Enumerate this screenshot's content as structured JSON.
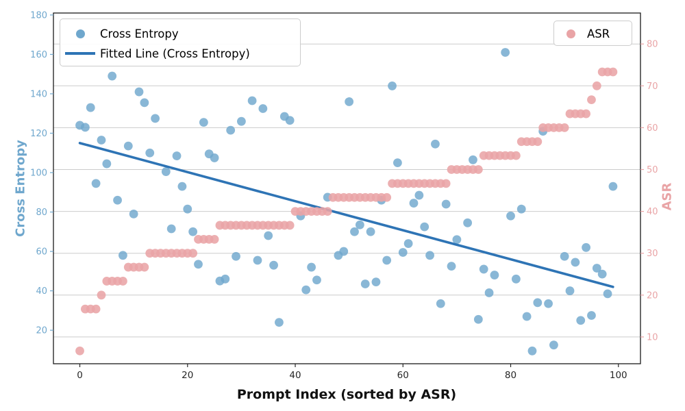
{
  "figure": {
    "xlabel": "Prompt Index (sorted by ASR)",
    "ylabel_left": "Cross Entropy",
    "ylabel_right": "ASR",
    "legend_main": {
      "cross_entropy": "Cross Entropy",
      "fitted_line": "Fitted Line (Cross Entropy)"
    },
    "legend_asr": {
      "asr": "ASR"
    }
  },
  "chart_data": {
    "type": "scatter",
    "title": "",
    "xlabel": "Prompt Index (sorted by ASR)",
    "ylabel_left": "Cross Entropy",
    "ylabel_right": "ASR",
    "xlim": [
      -4.9,
      104.1
    ],
    "ylim_left": [
      3,
      181
    ],
    "ylim_right": [
      3.6,
      87.4
    ],
    "x_ticks": [
      0,
      20,
      40,
      60,
      80,
      100
    ],
    "y_ticks_left": [
      20,
      40,
      60,
      80,
      100,
      120,
      140,
      160,
      180
    ],
    "y_ticks_right": [
      10,
      20,
      30,
      40,
      50,
      60,
      70,
      80
    ],
    "grid": "horizontal lines at right-axis (ASR) ticks",
    "legend_position": [
      "upper left",
      "upper right"
    ],
    "palette": {
      "cross_entropy": "#6fa7cd",
      "asr": "#e9a4a6",
      "fitted_line": "#2e74b5",
      "grid": "#cccccc",
      "spine": "#1a1a1a",
      "x_text": "#262626"
    },
    "series": [
      {
        "name": "Cross Entropy",
        "type": "scatter",
        "axis": "left",
        "color": "#6fa7cd",
        "points": [
          [
            0,
            124
          ],
          [
            1,
            123
          ],
          [
            2,
            133
          ],
          [
            3,
            94.5
          ],
          [
            4,
            116.5
          ],
          [
            5,
            104.5
          ],
          [
            6,
            149
          ],
          [
            7,
            86
          ],
          [
            8,
            58
          ],
          [
            9,
            113.5
          ],
          [
            10,
            79
          ],
          [
            11,
            141
          ],
          [
            12,
            135.5
          ],
          [
            13,
            110
          ],
          [
            14,
            127.5
          ],
          [
            16,
            100.5
          ],
          [
            17,
            71.5
          ],
          [
            18,
            108.5
          ],
          [
            19,
            93
          ],
          [
            20,
            81.5
          ],
          [
            21,
            70
          ],
          [
            22,
            53.5
          ],
          [
            23,
            125.5
          ],
          [
            24,
            109.5
          ],
          [
            25,
            107.5
          ],
          [
            26,
            45
          ],
          [
            27,
            46
          ],
          [
            28,
            121.5
          ],
          [
            29,
            57.5
          ],
          [
            30,
            126
          ],
          [
            32,
            136.5
          ],
          [
            33,
            55.5
          ],
          [
            34,
            132.5
          ],
          [
            35,
            68
          ],
          [
            36,
            53
          ],
          [
            37,
            24
          ],
          [
            38,
            128.5
          ],
          [
            39,
            126.5
          ],
          [
            41,
            78
          ],
          [
            42,
            40.5
          ],
          [
            43,
            52
          ],
          [
            44,
            45.5
          ],
          [
            46,
            87.5
          ],
          [
            48,
            58
          ],
          [
            49,
            60
          ],
          [
            50,
            136
          ],
          [
            51,
            70
          ],
          [
            52,
            73.5
          ],
          [
            53,
            43.5
          ],
          [
            54,
            70
          ],
          [
            55,
            44.5
          ],
          [
            56,
            86
          ],
          [
            57,
            55.5
          ],
          [
            58,
            144
          ],
          [
            59,
            105
          ],
          [
            60,
            59.5
          ],
          [
            61,
            64
          ],
          [
            62,
            84.5
          ],
          [
            63,
            88.5
          ],
          [
            64,
            72.5
          ],
          [
            65,
            58
          ],
          [
            66,
            114.5
          ],
          [
            67,
            33.5
          ],
          [
            68,
            84
          ],
          [
            69,
            52.5
          ],
          [
            70,
            66
          ],
          [
            72,
            74.5
          ],
          [
            73,
            106.5
          ],
          [
            74,
            25.5
          ],
          [
            75,
            51
          ],
          [
            76,
            39
          ],
          [
            77,
            48
          ],
          [
            79,
            161
          ],
          [
            80,
            78
          ],
          [
            81,
            46
          ],
          [
            82,
            81.5
          ],
          [
            83,
            27
          ],
          [
            84,
            9.5
          ],
          [
            85,
            34
          ],
          [
            86,
            121
          ],
          [
            87,
            33.5
          ],
          [
            88,
            12.5
          ],
          [
            90,
            57.5
          ],
          [
            91,
            40
          ],
          [
            92,
            54.5
          ],
          [
            93,
            25
          ],
          [
            94,
            62
          ],
          [
            95,
            27.5
          ],
          [
            96,
            51.5
          ],
          [
            97,
            48.5
          ],
          [
            98,
            38.5
          ],
          [
            99,
            93
          ]
        ]
      },
      {
        "name": "Fitted Line (Cross Entropy)",
        "type": "line",
        "axis": "left",
        "color": "#2e74b5",
        "points": [
          [
            0,
            115
          ],
          [
            99,
            42
          ]
        ]
      },
      {
        "name": "ASR",
        "type": "scatter",
        "axis": "right",
        "color": "#e9a4a6",
        "points": [
          [
            0,
            6.67
          ],
          [
            1,
            16.67
          ],
          [
            2,
            16.67
          ],
          [
            3,
            16.67
          ],
          [
            4,
            20
          ],
          [
            5,
            23.33
          ],
          [
            6,
            23.33
          ],
          [
            7,
            23.33
          ],
          [
            8,
            23.33
          ],
          [
            9,
            26.67
          ],
          [
            10,
            26.67
          ],
          [
            11,
            26.67
          ],
          [
            12,
            26.67
          ],
          [
            13,
            30
          ],
          [
            14,
            30
          ],
          [
            15,
            30
          ],
          [
            16,
            30
          ],
          [
            17,
            30
          ],
          [
            18,
            30
          ],
          [
            19,
            30
          ],
          [
            20,
            30
          ],
          [
            21,
            30
          ],
          [
            22,
            33.33
          ],
          [
            23,
            33.33
          ],
          [
            24,
            33.33
          ],
          [
            25,
            33.33
          ],
          [
            26,
            36.67
          ],
          [
            27,
            36.67
          ],
          [
            28,
            36.67
          ],
          [
            29,
            36.67
          ],
          [
            30,
            36.67
          ],
          [
            31,
            36.67
          ],
          [
            32,
            36.67
          ],
          [
            33,
            36.67
          ],
          [
            34,
            36.67
          ],
          [
            35,
            36.67
          ],
          [
            36,
            36.67
          ],
          [
            37,
            36.67
          ],
          [
            38,
            36.67
          ],
          [
            39,
            36.67
          ],
          [
            40,
            40
          ],
          [
            41,
            40
          ],
          [
            42,
            40
          ],
          [
            43,
            40
          ],
          [
            44,
            40
          ],
          [
            45,
            40
          ],
          [
            46,
            40
          ],
          [
            47,
            43.33
          ],
          [
            48,
            43.33
          ],
          [
            49,
            43.33
          ],
          [
            50,
            43.33
          ],
          [
            51,
            43.33
          ],
          [
            52,
            43.33
          ],
          [
            53,
            43.33
          ],
          [
            54,
            43.33
          ],
          [
            55,
            43.33
          ],
          [
            56,
            43.33
          ],
          [
            57,
            43.33
          ],
          [
            58,
            46.67
          ],
          [
            59,
            46.67
          ],
          [
            60,
            46.67
          ],
          [
            61,
            46.67
          ],
          [
            62,
            46.67
          ],
          [
            63,
            46.67
          ],
          [
            64,
            46.67
          ],
          [
            65,
            46.67
          ],
          [
            66,
            46.67
          ],
          [
            67,
            46.67
          ],
          [
            68,
            46.67
          ],
          [
            69,
            50
          ],
          [
            70,
            50
          ],
          [
            71,
            50
          ],
          [
            72,
            50
          ],
          [
            73,
            50
          ],
          [
            74,
            50
          ],
          [
            75,
            53.33
          ],
          [
            76,
            53.33
          ],
          [
            77,
            53.33
          ],
          [
            78,
            53.33
          ],
          [
            79,
            53.33
          ],
          [
            80,
            53.33
          ],
          [
            81,
            53.33
          ],
          [
            82,
            56.67
          ],
          [
            83,
            56.67
          ],
          [
            84,
            56.67
          ],
          [
            85,
            56.67
          ],
          [
            86,
            60
          ],
          [
            87,
            60
          ],
          [
            88,
            60
          ],
          [
            89,
            60
          ],
          [
            90,
            60
          ],
          [
            91,
            63.33
          ],
          [
            92,
            63.33
          ],
          [
            93,
            63.33
          ],
          [
            94,
            63.33
          ],
          [
            95,
            66.67
          ],
          [
            96,
            70
          ],
          [
            97,
            73.33
          ],
          [
            98,
            73.33
          ],
          [
            99,
            73.33
          ]
        ]
      }
    ]
  }
}
